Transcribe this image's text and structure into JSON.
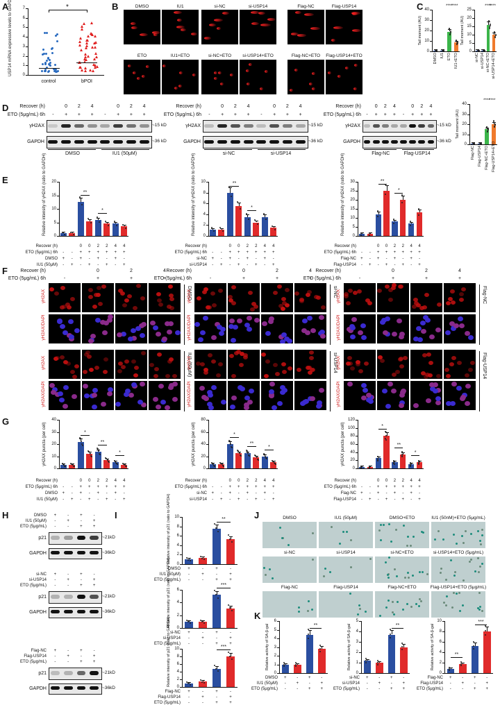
{
  "panels": [
    "A",
    "B",
    "C",
    "D",
    "E",
    "F",
    "G",
    "H",
    "I",
    "J",
    "K"
  ],
  "panelA": {
    "ylabel": "USP14 mRNA expressive levels to GAPDH (2^-ΔCT)",
    "yticks": [
      "0",
      "1",
      "2",
      "3",
      "4",
      "5",
      "6",
      "7"
    ],
    "groups": [
      "control",
      "bPOI"
    ],
    "sig": "*"
  },
  "panelB": {
    "top_labels": [
      "DMSO",
      "IU1",
      "si-NC",
      "si-USP14",
      "Flag-NC",
      "Flag-USP14"
    ],
    "bottom_labels": [
      "ETO",
      "IU1+ETO",
      "si-NC+ETO",
      "si-USP14+ETO",
      "Flag-NC+ETO",
      "Flag-USP14+ETO"
    ]
  },
  "panelC": {
    "ylabel": "Tail moment (AU)",
    "sig": "****",
    "charts": [
      {
        "categories": [
          "DMSO",
          "IU1",
          "ETO",
          "IU1+ETO"
        ],
        "yticks": [
          "0",
          "10",
          "20",
          "30",
          "40"
        ],
        "ymax": 40,
        "values": [
          0.6,
          0.6,
          19,
          9
        ],
        "colors": [
          "#2a4ea0",
          "#2a4ea0",
          "#3bb54a",
          "#f07a2c"
        ]
      },
      {
        "categories": [
          "si-NC",
          "si-USP14",
          "si-NC+ETO",
          "si-USP14+ETO"
        ],
        "yticks": [
          "0",
          "5",
          "10",
          "15",
          "20",
          "25"
        ],
        "ymax": 25,
        "values": [
          0.5,
          0.5,
          16,
          10
        ],
        "colors": [
          "#2a4ea0",
          "#2a4ea0",
          "#3bb54a",
          "#f07a2c"
        ]
      },
      {
        "categories": [
          "Flag-NC",
          "Flag-USP14",
          "Flag-NC+ETO",
          "Flag-USP14+ETO"
        ],
        "yticks": [
          "0",
          "10",
          "20",
          "30",
          "40"
        ],
        "ymax": 40,
        "values": [
          0.7,
          0.9,
          15,
          20
        ],
        "colors": [
          "#2a4ea0",
          "#2a4ea0",
          "#3bb54a",
          "#f07a2c"
        ]
      }
    ]
  },
  "panelD": {
    "recover_label": "Recover (h)",
    "eto_label": "ETO (5μg/mL) 6h",
    "hours": [
      "0",
      "2",
      "4"
    ],
    "plus": "+",
    "minus": "-",
    "proteins": [
      "γH2AX",
      "GAPDH"
    ],
    "kd": [
      "~15 kD",
      "~36 kD"
    ],
    "groups": [
      [
        "DMSO",
        "IU1 (50μM)"
      ],
      [
        "si-NC",
        "si-USP14"
      ],
      [
        "Flag-NC",
        "Flag-USP14"
      ]
    ]
  },
  "panelE": {
    "ylabel": "Relative intensity of γH2AX (ratio to GAPDH)",
    "sig": [
      "**",
      "*"
    ],
    "charts": [
      {
        "yticks": [
          "0",
          "5",
          "10",
          "15",
          "20"
        ],
        "ymax": 20,
        "values": [
          1,
          1,
          12.5,
          5.5,
          6,
          4.5,
          4.5,
          3.5
        ],
        "row2": "DMSO",
        "row3": "IU1 (50μM)"
      },
      {
        "yticks": [
          "0",
          "2",
          "4",
          "6",
          "8",
          "10"
        ],
        "ymax": 10,
        "values": [
          1.2,
          1.2,
          8,
          5.5,
          3.5,
          2.5,
          3.5,
          1.5
        ],
        "row2": "si-NC",
        "row3": "si-USP14"
      },
      {
        "yticks": [
          "0",
          "5",
          "10",
          "15",
          "20",
          "25",
          "30"
        ],
        "ymax": 30,
        "values": [
          1,
          1,
          12,
          25,
          8,
          20,
          7,
          13
        ],
        "row2": "Flag-NC",
        "row3": "Flag-USP14"
      }
    ]
  },
  "panelF": {
    "recover_label": "Recover (h)",
    "eto_label": "ETO (5μg/mL) 6h",
    "hours": [
      "0",
      "2",
      "4"
    ],
    "row_labels": [
      "γH2AX",
      "γH2AX/DAPI"
    ],
    "group_labels": [
      [
        "DMSO",
        "IU1 (50μM)"
      ],
      [
        "si-NC",
        "si-USP14"
      ],
      [
        "Flag-NC",
        "Flag-USP14"
      ]
    ]
  },
  "panelG": {
    "ylabel": "γH2AX puncta (per cell)",
    "sig": [
      "*",
      "**",
      "*",
      "***"
    ],
    "charts": [
      {
        "yticks": [
          "0",
          "10",
          "20",
          "30",
          "40"
        ],
        "ymax": 40,
        "values": [
          3,
          3,
          22,
          12,
          14,
          7,
          5,
          3
        ],
        "row2": "DMSO",
        "row3": "IU1 (50μM)"
      },
      {
        "yticks": [
          "0",
          "20",
          "40",
          "60",
          "80"
        ],
        "ymax": 80,
        "values": [
          7,
          7,
          40,
          25,
          25,
          18,
          20,
          10
        ],
        "row2": "si-NC",
        "row3": "si-USP14"
      },
      {
        "yticks": [
          "0",
          "20",
          "40",
          "60",
          "80",
          "100",
          "120"
        ],
        "ymax": 120,
        "values": [
          3,
          3,
          25,
          80,
          15,
          35,
          10,
          15
        ],
        "row2": "Flag-NC",
        "row3": "Flag-USP14"
      }
    ]
  },
  "panelH": {
    "blots": [
      {
        "rows": [
          "DMSO",
          "IU1 (50μM)",
          "ETO (5μg/mL)"
        ]
      },
      {
        "rows": [
          "si-NC",
          "si-USP14",
          "ETO (5μg/mL)"
        ]
      },
      {
        "rows": [
          "Flag-NC",
          "Flag-USP14",
          "ETO (5μg/mL)"
        ]
      }
    ],
    "proteins": [
      "p21",
      "GAPDH"
    ],
    "kd": [
      "~21kD",
      "~36kD"
    ]
  },
  "panelI": {
    "ylabel": "Relative intensity of p21 (ratio to GAPDH)",
    "charts": [
      {
        "yticks": [
          "0",
          "2",
          "4",
          "6",
          "8",
          "10"
        ],
        "ymax": 10,
        "values": [
          1,
          1.3,
          7.5,
          5.3
        ],
        "rows": [
          "DMSO",
          "IU1 (50μM)",
          "ETO (5μg/mL)"
        ],
        "sig": "**"
      },
      {
        "yticks": [
          "0",
          "2",
          "4",
          "6"
        ],
        "ymax": 6,
        "values": [
          1,
          1,
          5.2,
          3.1
        ],
        "rows": [
          "si-NC",
          "si-USP14",
          "ETO (5μg/mL)"
        ],
        "sig": "***"
      },
      {
        "yticks": [
          "0",
          "2",
          "4",
          "6",
          "8",
          "10"
        ],
        "ymax": 10,
        "values": [
          1,
          1.4,
          4.8,
          8
        ],
        "rows": [
          "Flag-NC",
          "Flag-USP14",
          "ETO (5μg/mL)"
        ],
        "sig": "***"
      }
    ]
  },
  "panelJ": {
    "labels": [
      [
        "DMSO",
        "IU1 (50μM)",
        "DMSO+ETO",
        "IU1 (50nM)+ETO (5μg/mL)"
      ],
      [
        "si-NC",
        "si-USP14",
        "si-NC+ETO",
        "si-USP14+ETO (5μg/mL)"
      ],
      [
        "Flag-NC",
        "Flag-USP14",
        "Flag-NC+ETO",
        "Flag-USP14+ETO (5μg/mL)"
      ]
    ]
  },
  "panelK": {
    "ylabel": "Relative activity of SA-β-gal",
    "charts": [
      {
        "yticks": [
          "0",
          "1",
          "2",
          "3",
          "4",
          "5",
          "6"
        ],
        "ymax": 6,
        "values": [
          1,
          1,
          4.4,
          2.8
        ],
        "rows": [
          "DMSO",
          "IU1 (50μM)",
          "ETO (5μg/mL)"
        ],
        "sig": [
          "**"
        ]
      },
      {
        "yticks": [
          "0",
          "1",
          "2",
          "3",
          "4",
          "5"
        ],
        "ymax": 5,
        "values": [
          1.2,
          1,
          3.7,
          2.5
        ],
        "rows": [
          "si-NC",
          "si-USP14",
          "ETO (5μg/mL)"
        ],
        "sig": [
          "**"
        ]
      },
      {
        "yticks": [
          "0",
          "2",
          "4",
          "6",
          "8",
          "10"
        ],
        "ymax": 10,
        "values": [
          0.8,
          1.8,
          5.2,
          8
        ],
        "rows": [
          "Flag-NC",
          "Flag-USP14",
          "ETO (5μg/mL)"
        ],
        "sig": [
          "**",
          "***"
        ]
      }
    ]
  }
}
